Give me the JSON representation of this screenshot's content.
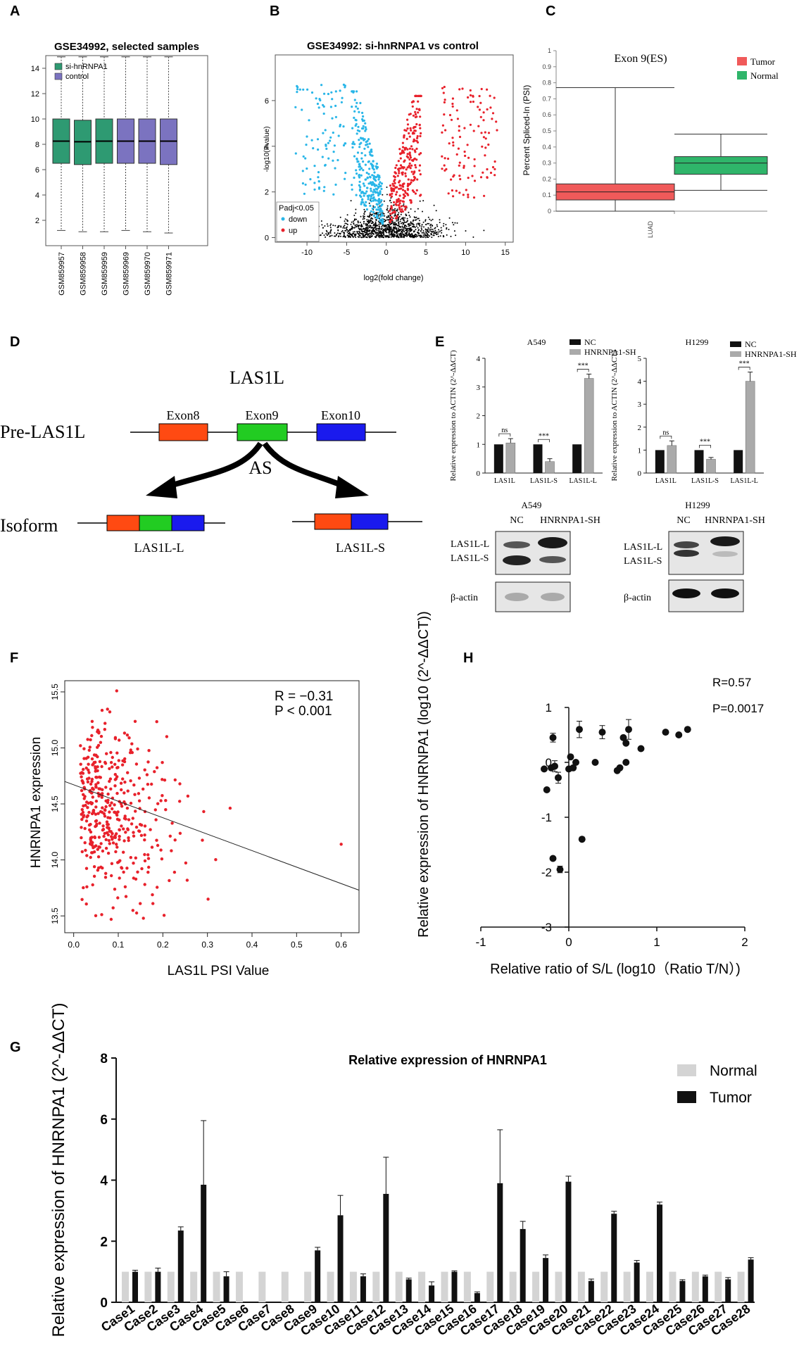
{
  "panel_letters": [
    "A",
    "B",
    "C",
    "D",
    "E",
    "F",
    "G",
    "H"
  ],
  "colors": {
    "green": "#2e9a72",
    "purple": "#7b73c0",
    "cyan": "#29b6e8",
    "red": "#e8212b",
    "tumor_red": "#f05a5a",
    "normal_green": "#2fb56a",
    "exon8": "#ff4a12",
    "exon9": "#22cc22",
    "exon10": "#1a1aee",
    "bar_dark": "#111111",
    "bar_gray": "#aaaaaa",
    "normal_gray": "#d4d4d4"
  },
  "chart_data": [
    {
      "id": "A",
      "type": "box",
      "title": "GSE34992, selected samples",
      "ylim": [
        0,
        15
      ],
      "yticks": [
        2,
        4,
        6,
        8,
        10,
        12,
        14
      ],
      "legend": [
        "si-hnRNPA1",
        "control"
      ],
      "boxes": [
        {
          "label": "GSM859957",
          "group": "si-hnRNPA1",
          "min": 1.2,
          "q1": 6.5,
          "median": 8.25,
          "q3": 10.0,
          "max": 14.9
        },
        {
          "label": "GSM859958",
          "group": "si-hnRNPA1",
          "min": 1.1,
          "q1": 6.4,
          "median": 8.2,
          "q3": 9.9,
          "max": 14.9
        },
        {
          "label": "GSM859959",
          "group": "si-hnRNPA1",
          "min": 1.1,
          "q1": 6.5,
          "median": 8.25,
          "q3": 10.0,
          "max": 14.9
        },
        {
          "label": "GSM859969",
          "group": "control",
          "min": 1.2,
          "q1": 6.5,
          "median": 8.25,
          "q3": 10.0,
          "max": 14.9
        },
        {
          "label": "GSM859970",
          "group": "control",
          "min": 1.1,
          "q1": 6.5,
          "median": 8.25,
          "q3": 10.0,
          "max": 14.9
        },
        {
          "label": "GSM859971",
          "group": "control",
          "min": 1.0,
          "q1": 6.4,
          "median": 8.25,
          "q3": 10.0,
          "max": 14.9
        }
      ]
    },
    {
      "id": "B",
      "type": "scatter",
      "title": "GSE34992: si-hnRNPA1 vs control",
      "xlabel": "log2(fold change)",
      "ylabel": "-log10(Pvalue)",
      "xlim": [
        -14,
        16
      ],
      "ylim": [
        -0.2,
        8
      ],
      "xticks": [
        -10,
        -5,
        0,
        5,
        10,
        15
      ],
      "yticks": [
        0,
        2,
        4,
        6
      ],
      "legend_title": "Padj<0.05",
      "legend": [
        "down",
        "up"
      ],
      "note": "volcano plot: ~2000 genes; down-regulated (blue) left of 0, up-regulated (red) right of 0, non-significant (black) near baseline"
    },
    {
      "id": "C",
      "type": "box",
      "title": "Exon 9(ES)",
      "ylabel": "Percent Spliced-In (PSI)",
      "ylim": [
        0,
        1
      ],
      "yticks": [
        0,
        0.1,
        0.2,
        0.3,
        0.4,
        0.5,
        0.6,
        0.7,
        0.8,
        0.9,
        1
      ],
      "xcategory": "LUAD",
      "legend": [
        "Tumor",
        "Normal"
      ],
      "boxes": [
        {
          "label": "Tumor",
          "min": 0.0,
          "q1": 0.07,
          "median": 0.12,
          "q3": 0.17,
          "max": 0.77
        },
        {
          "label": "Normal",
          "min": 0.13,
          "q1": 0.23,
          "median": 0.3,
          "q3": 0.34,
          "max": 0.48
        }
      ]
    },
    {
      "id": "E1",
      "type": "bar",
      "title": "A549",
      "ylabel": "Relative expression to ACTIN (2^-ΔΔCT)",
      "ylim": [
        0,
        4
      ],
      "yticks": [
        0,
        1,
        2,
        3,
        4
      ],
      "categories": [
        "LAS1L",
        "LAS1L-S",
        "LAS1L-L"
      ],
      "series": [
        {
          "name": "NC",
          "values": [
            1,
            1,
            1
          ]
        },
        {
          "name": "HNRNPA1-SH",
          "values": [
            1.05,
            0.4,
            3.3
          ],
          "errors": [
            0.15,
            0.1,
            0.15
          ]
        }
      ],
      "significance": [
        "ns",
        "***",
        "***"
      ]
    },
    {
      "id": "E2",
      "type": "bar",
      "title": "H1299",
      "ylabel": "Relative expression to ACTIN (2^-ΔΔCT)",
      "ylim": [
        0,
        5
      ],
      "yticks": [
        0,
        1,
        2,
        3,
        4,
        5
      ],
      "categories": [
        "LAS1L",
        "LAS1L-S",
        "LAS1L-L"
      ],
      "series": [
        {
          "name": "NC",
          "values": [
            1,
            1,
            1
          ]
        },
        {
          "name": "HNRNPA1-SH",
          "values": [
            1.2,
            0.6,
            4.0
          ],
          "errors": [
            0.2,
            0.08,
            0.4
          ]
        }
      ],
      "significance": [
        "ns",
        "***",
        "***"
      ]
    },
    {
      "id": "F",
      "type": "scatter",
      "xlabel": "LAS1L PSI Value",
      "ylabel": "HNRNPA1 expression",
      "xlim": [
        -0.02,
        0.64
      ],
      "ylim": [
        13.35,
        15.6
      ],
      "xticks": [
        0.0,
        0.1,
        0.2,
        0.3,
        0.4,
        0.5,
        0.6
      ],
      "yticks": [
        13.5,
        14.0,
        14.5,
        15.0,
        15.5
      ],
      "annotations": [
        "R = −0.31",
        "P < 0.001"
      ],
      "fit_line": {
        "x0": -0.02,
        "y0": 14.7,
        "x1": 0.64,
        "y1": 13.73
      },
      "note": "~400 tumor samples"
    },
    {
      "id": "H",
      "type": "scatter",
      "xlabel": "Relative ratio of S/L (log10（Ratio T/N）)",
      "ylabel": "Relative expression of HNRNPA1 (log10 (2^-ΔΔCT))",
      "xlim": [
        -1,
        2
      ],
      "ylim": [
        -3,
        1
      ],
      "xticks": [
        -1,
        0,
        1,
        2
      ],
      "yticks": [
        -3,
        -2,
        -1,
        0,
        1
      ],
      "annotations": [
        "R=0.57",
        "P=0.0017"
      ],
      "points": [
        {
          "x": -0.28,
          "y": -0.12
        },
        {
          "x": -0.25,
          "y": -0.5
        },
        {
          "x": -0.2,
          "y": -0.1
        },
        {
          "x": -0.18,
          "y": 0.45,
          "err": 0.08
        },
        {
          "x": -0.16,
          "y": -0.07,
          "err": 0.1
        },
        {
          "x": -0.12,
          "y": -0.28,
          "err": 0.1
        },
        {
          "x": -0.18,
          "y": -1.75
        },
        {
          "x": -0.1,
          "y": -1.95,
          "err": 0.06
        },
        {
          "x": 0.0,
          "y": -0.12
        },
        {
          "x": 0.02,
          "y": 0.1
        },
        {
          "x": 0.05,
          "y": -0.1
        },
        {
          "x": 0.08,
          "y": 0.0
        },
        {
          "x": 0.12,
          "y": 0.6,
          "err": 0.15
        },
        {
          "x": 0.15,
          "y": -1.4
        },
        {
          "x": 0.3,
          "y": 0.0
        },
        {
          "x": 0.38,
          "y": 0.55,
          "err": 0.12
        },
        {
          "x": 0.55,
          "y": -0.15
        },
        {
          "x": 0.58,
          "y": -0.1
        },
        {
          "x": 0.62,
          "y": 0.45
        },
        {
          "x": 0.65,
          "y": 0.0
        },
        {
          "x": 0.68,
          "y": 0.6,
          "err": 0.18
        },
        {
          "x": 0.65,
          "y": 0.35
        },
        {
          "x": 0.82,
          "y": 0.25
        },
        {
          "x": 1.1,
          "y": 0.55
        },
        {
          "x": 1.25,
          "y": 0.5
        },
        {
          "x": 1.35,
          "y": 0.6
        }
      ]
    },
    {
      "id": "G",
      "type": "bar",
      "title": "Relative expression of HNRNPA1",
      "ylabel": "Relative expression of HNRNPA1 (2^-ΔΔCT)",
      "ylim": [
        0,
        8
      ],
      "yticks": [
        0,
        2,
        4,
        6,
        8
      ],
      "categories": [
        "Case1",
        "Case2",
        "Case3",
        "Case4",
        "Case5",
        "Case6",
        "Case7",
        "Case8",
        "Case9",
        "Case10",
        "Case11",
        "Case12",
        "Case13",
        "Case14",
        "Case15",
        "Case16",
        "Case17",
        "Case18",
        "Case19",
        "Case20",
        "Case21",
        "Case22",
        "Case23",
        "Case24",
        "Case25",
        "Case26",
        "Case27",
        "Case28"
      ],
      "series": [
        {
          "name": "Normal",
          "values": [
            1,
            1,
            1,
            1,
            1,
            1,
            1,
            1,
            1,
            1,
            1,
            1,
            1,
            1,
            1,
            1,
            1,
            1,
            1,
            1,
            1,
            1,
            1,
            1,
            1,
            1,
            1,
            1
          ]
        },
        {
          "name": "Tumor",
          "values": [
            1.0,
            1.0,
            2.35,
            3.85,
            0.85,
            0,
            0,
            0,
            1.7,
            2.85,
            0.85,
            3.55,
            0.75,
            0.55,
            1.0,
            0.3,
            3.9,
            2.4,
            1.45,
            3.95,
            0.7,
            2.9,
            1.3,
            3.2,
            0.7,
            0.85,
            0.75,
            1.4
          ],
          "errors": [
            0.05,
            0.12,
            0.12,
            2.1,
            0.15,
            0,
            0,
            0,
            0.1,
            0.65,
            0.08,
            1.2,
            0.04,
            0.12,
            0.03,
            0.04,
            1.75,
            0.25,
            0.1,
            0.18,
            0.06,
            0.08,
            0.07,
            0.08,
            0.04,
            0.04,
            0.06,
            0.06
          ]
        }
      ]
    }
  ],
  "panelA": {
    "legend_labels": [
      "si-hnRNPA1",
      "control"
    ]
  },
  "panelB": {
    "legend_title": "Padj<0.05",
    "legend_labels": [
      "down",
      "up"
    ]
  },
  "panelC": {
    "legend_labels": [
      "Tumor",
      "Normal"
    ],
    "category": "LUAD"
  },
  "panelD": {
    "title": "LAS1L",
    "pre_label": "Pre-LAS1L",
    "exons": [
      "Exon8",
      "Exon9",
      "Exon10"
    ],
    "as_label": "AS",
    "isoform_label": "Isoform",
    "isoforms": [
      "LAS1L-L",
      "LAS1L-S"
    ]
  },
  "panelE": {
    "legend": [
      "NC",
      "HNRNPA1-SH"
    ],
    "blots": [
      {
        "title": "A549",
        "lanes": [
          "NC",
          "HNRNPA1-SH"
        ],
        "band_labels": [
          "LAS1L-L",
          "LAS1L-S"
        ],
        "actin": "β-actin"
      },
      {
        "title": "H1299",
        "lanes": [
          "NC",
          "HNRNPA1-SH"
        ],
        "band_labels": [
          "LAS1L-L",
          "LAS1L-S"
        ],
        "actin": "β-actin"
      }
    ]
  }
}
